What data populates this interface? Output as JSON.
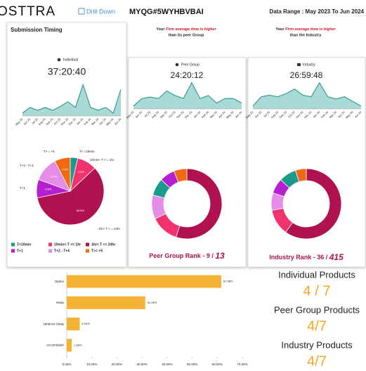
{
  "header": {
    "logo": "OSTTRA",
    "drill_down": "Drill Down",
    "id": "MYQG#5WYHBVBAI",
    "date_range": "Data Range : May 2023 To Jun 2024"
  },
  "panels": {
    "submission": {
      "title": "Submission Timing",
      "label": "Individual",
      "time": "37:20:40"
    },
    "peer": {
      "label": "Peer Group",
      "time": "24:20:12",
      "note_a": "Your",
      "note_b": "Firm average time is higher",
      "note_c": "than its peer Group",
      "rank": "Peer Group Rank - 9 /",
      "rank_total": "13"
    },
    "industry": {
      "label": "Industry",
      "time": "26:59:48",
      "note_a": "Your",
      "note_b": "Firm average time is higher",
      "note_c": "than the Industry",
      "rank": "Industry Rank - 36 /",
      "rank_total": "415"
    }
  },
  "products": {
    "individual": "Individual Products",
    "individual_value": "4 / 7",
    "peer": "Peer Group Products",
    "peer_value": "4/7",
    "industry": "Industry Products",
    "industry_value": "4/7"
  },
  "chart_data": [
    {
      "type": "area",
      "color": "#3a9c93",
      "fill": "#a9dad5",
      "categories": [
        "May 23",
        "Jun 23",
        "Jul 23",
        "Aug 23",
        "Sep 23",
        "Oct 23",
        "Nov 23",
        "Dec 23",
        "Jan 24",
        "Feb 24",
        "Mar 24",
        "Apr 24",
        "May 24",
        "Jun 24"
      ],
      "values": [
        30,
        36,
        33,
        36,
        33,
        37,
        42,
        36,
        60,
        36,
        33,
        36,
        30,
        55
      ]
    },
    {
      "type": "pie",
      "categories": [
        "T<10min",
        "10min< T <= 1hr",
        "1hr< T <= 24hr",
        "T+1",
        "T+2 - T+4",
        "T>= +5"
      ],
      "colors": [
        "#1a9a8a",
        "#f0336d",
        "#b0114f",
        "#b51fd1",
        "#e58be8",
        "#f06a12"
      ],
      "values": [
        3.6,
        9.4,
        58.8,
        8.8,
        11.8,
        7.6
      ],
      "value_labels": [
        null,
        "9.4%",
        "58.8%",
        "8.8%",
        "11.8%",
        "7.6%"
      ],
      "annotations": [
        "T< =10min",
        "10min< T < = 1hr",
        "1hr< T < = 24hr",
        "T+1",
        "T+2 - T+4",
        "T> = +5"
      ]
    },
    {
      "type": "area",
      "color": "#3a9c93",
      "fill": "#a9dad5",
      "categories": [
        "May 23",
        "Jun 23",
        "Jul 23",
        "Aug 23",
        "Sep 23",
        "Oct 23",
        "Nov 23",
        "Dec 23",
        "Jan 24",
        "Feb 24",
        "Mar 24",
        "Apr 24",
        "May 24",
        "Jun 24"
      ],
      "values": [
        24,
        34,
        36,
        34,
        44,
        38,
        34,
        55,
        34,
        38,
        28,
        34,
        34,
        28
      ]
    },
    {
      "type": "donut",
      "colors": [
        "#b0114f",
        "#f0336d",
        "#e58be8",
        "#1a9a8a",
        "#b51fd1",
        "#f06a12"
      ],
      "values": [
        55,
        13,
        11,
        8,
        7,
        6
      ]
    },
    {
      "type": "area",
      "color": "#3a9c93",
      "fill": "#a9dad5",
      "categories": [
        "May 23",
        "Jun 23",
        "Jul 23",
        "Aug 23",
        "Sep 23",
        "Oct 23",
        "Nov 23",
        "Dec 23",
        "Jan 24",
        "Feb 24",
        "Mar 24",
        "Apr 24",
        "May 24",
        "Jun 24"
      ],
      "values": [
        22,
        34,
        36,
        34,
        38,
        44,
        36,
        34,
        52,
        34,
        31,
        34,
        28,
        22
      ]
    },
    {
      "type": "donut",
      "colors": [
        "#b0114f",
        "#f0336d",
        "#e58be8",
        "#b51fd1",
        "#1a9a8a",
        "#f06a12"
      ],
      "values": [
        60,
        12,
        8,
        7,
        8,
        5
      ]
    },
    {
      "type": "hbar",
      "color": "#f5b335",
      "categories": [
        "Option",
        "Swap",
        "Variance Swap",
        "Accumulator"
      ],
      "values": [
        61.58,
        31.28,
        5.16,
        1.98
      ],
      "value_labels": [
        "61.58%",
        "31.28%",
        "5.16%",
        "1.98%"
      ],
      "xlim": [
        0,
        70
      ],
      "xticks": [
        {
          "value": 0,
          "label": "0.00%"
        },
        {
          "value": 10,
          "label": "10.00%"
        },
        {
          "value": 20,
          "label": "20.00%"
        },
        {
          "value": 30,
          "label": "30.00%"
        },
        {
          "value": 40,
          "label": "40.00%"
        },
        {
          "value": 50,
          "label": "50.00%"
        },
        {
          "value": 60,
          "label": "60.00%"
        },
        {
          "value": 70,
          "label": "70.00%"
        }
      ]
    }
  ]
}
